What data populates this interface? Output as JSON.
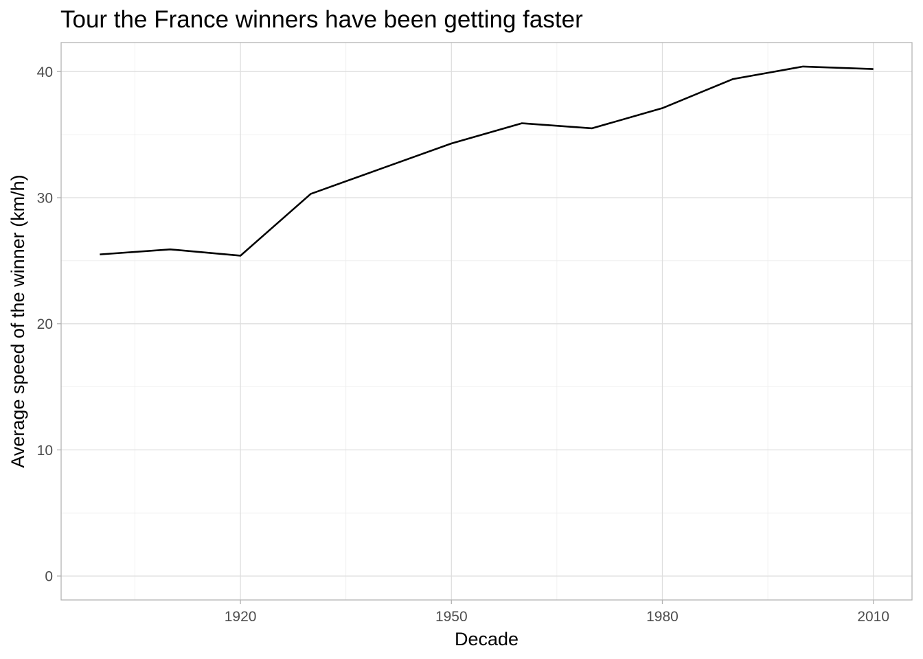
{
  "chart_data": {
    "type": "line",
    "title": "Tour the France winners have been getting faster",
    "xlabel": "Decade",
    "ylabel": "Average speed of the winner (km/h)",
    "x": [
      1900,
      1910,
      1920,
      1930,
      1940,
      1950,
      1960,
      1970,
      1980,
      1990,
      2000,
      2010
    ],
    "series": [
      {
        "values": [
          25.5,
          25.9,
          25.4,
          30.3,
          32.3,
          34.3,
          35.9,
          35.5,
          37.1,
          39.4,
          40.4,
          40.2
        ]
      }
    ],
    "xlim": [
      1894.5,
      2015.5
    ],
    "ylim": [
      -1.9,
      42.3
    ],
    "x_ticks": [
      1920,
      1950,
      1980,
      2010
    ],
    "x_tick_labels": [
      "1920",
      "1950",
      "1980",
      "2010"
    ],
    "x_minor_ticks": [
      1905,
      1935,
      1965,
      1995
    ],
    "y_ticks": [
      0,
      10,
      20,
      30,
      40
    ],
    "y_tick_labels": [
      "0",
      "10",
      "20",
      "30",
      "40"
    ],
    "y_minor_ticks": [
      5,
      15,
      25,
      35
    ],
    "grid": true,
    "legend": "none",
    "colors": {
      "line": "#000000",
      "grid_major": "#dedede",
      "grid_minor": "#ececec",
      "panel_border": "#b3b3b3",
      "tick_text": "#4d4d4d"
    }
  }
}
